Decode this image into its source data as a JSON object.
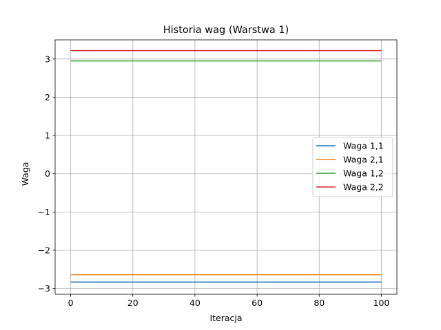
{
  "chart_data": {
    "type": "line",
    "title": "Historia wag (Warstwa 1)",
    "xlabel": "Iteracja",
    "ylabel": "Waga",
    "xlim": [
      -5,
      105
    ],
    "ylim": [
      -3.15,
      3.5
    ],
    "xticks": [
      0,
      20,
      40,
      60,
      80,
      100
    ],
    "xtick_labels": [
      "0",
      "20",
      "40",
      "60",
      "80",
      "100"
    ],
    "yticks": [
      -3,
      -2,
      -1,
      0,
      1,
      2,
      3
    ],
    "ytick_labels": [
      "−3",
      "−2",
      "−1",
      "0",
      "1",
      "2",
      "3"
    ],
    "grid": true,
    "legend_position": "center-right",
    "x": [
      0,
      100
    ],
    "series": [
      {
        "name": "Waga 1,1",
        "color": "#1f77b4",
        "values": [
          -2.83,
          -2.83
        ]
      },
      {
        "name": "Waga 2,1",
        "color": "#ff7f0e",
        "values": [
          -2.64,
          -2.64
        ]
      },
      {
        "name": "Waga 1,2",
        "color": "#2ca02c",
        "values": [
          2.95,
          2.95
        ]
      },
      {
        "name": "Waga 2,2",
        "color": "#d62728",
        "values": [
          3.22,
          3.22
        ]
      }
    ]
  }
}
